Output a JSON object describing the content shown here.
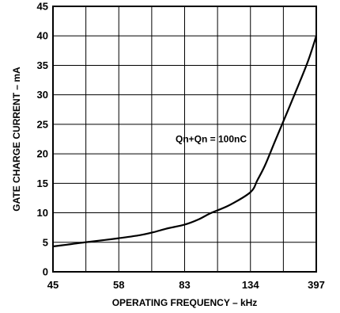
{
  "chart_data": {
    "type": "line",
    "title": "",
    "xlabel": "OPERATING FREQUENCY – kHz",
    "ylabel": "GATE CHARGE CURRENT – mA",
    "x_ticks": [
      "45",
      "58",
      "83",
      "134",
      "397"
    ],
    "y_ticks": [
      "0",
      "5",
      "10",
      "15",
      "20",
      "25",
      "30",
      "35",
      "40",
      "45"
    ],
    "ylim": [
      0,
      45
    ],
    "grid": true,
    "annotations": [
      "Qn+Qn = 100nC"
    ],
    "series": [
      {
        "name": "",
        "x": [
          45,
          47.5,
          50,
          52,
          55,
          58,
          65,
          70,
          75,
          83,
          92,
          100,
          115,
          134,
          150,
          170,
          200,
          250,
          300,
          350,
          397
        ],
        "y": [
          4.3,
          4.6,
          4.9,
          5.1,
          5.4,
          5.7,
          6.2,
          6.7,
          7.3,
          8.0,
          8.9,
          9.9,
          11.3,
          13.5,
          15.5,
          18.0,
          22.0,
          27.5,
          32.0,
          36.0,
          40.0
        ]
      }
    ]
  }
}
